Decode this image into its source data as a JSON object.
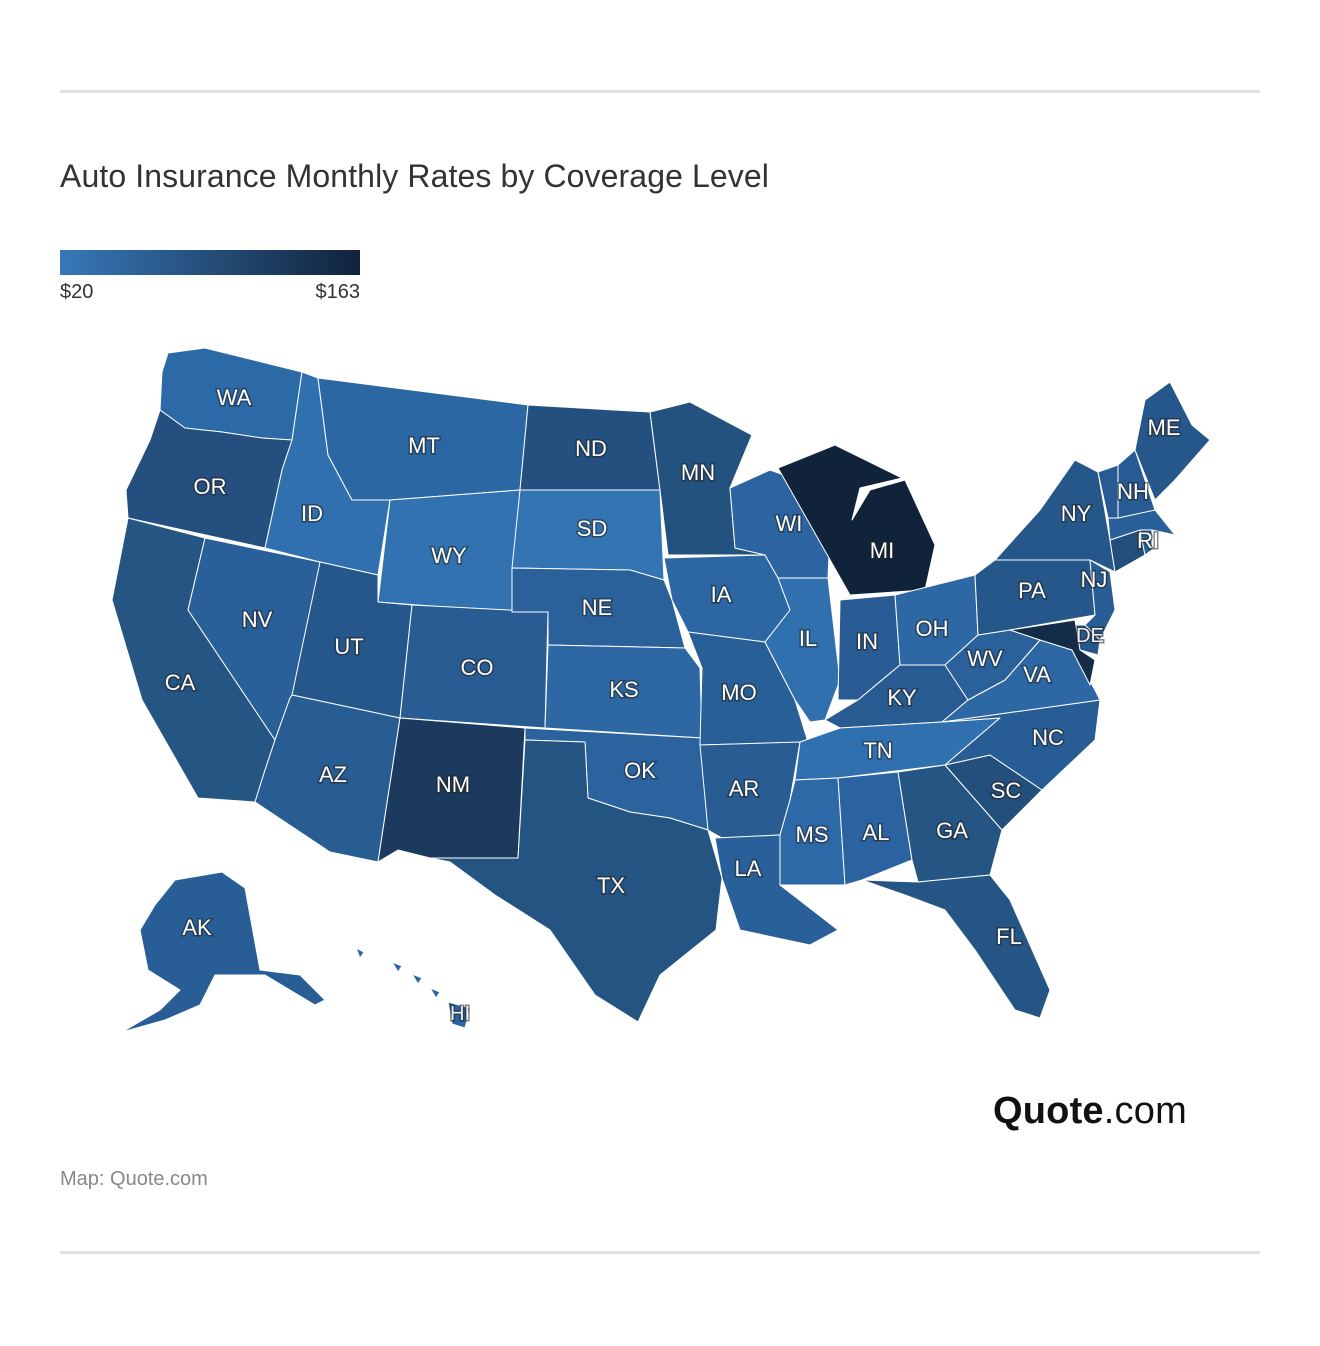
{
  "title": "Auto Insurance Monthly Rates by Coverage Level",
  "legend": {
    "min_label": "$20",
    "max_label": "$163",
    "min_color": "#3878b8",
    "max_color": "#10233a"
  },
  "credit": "Map: Quote.com",
  "brand": {
    "name_bold": "Quote",
    "name_suffix": ".com"
  },
  "states": [
    {
      "code": "WA",
      "label": "WA",
      "color": "#2b6aa6"
    },
    {
      "code": "OR",
      "label": "OR",
      "color": "#244f7e"
    },
    {
      "code": "CA",
      "label": "CA",
      "color": "#255583"
    },
    {
      "code": "NV",
      "label": "NV",
      "color": "#2a609a"
    },
    {
      "code": "ID",
      "label": "ID",
      "color": "#3070ae"
    },
    {
      "code": "MT",
      "label": "MT",
      "color": "#2b67a2"
    },
    {
      "code": "WY",
      "label": "WY",
      "color": "#3272b0"
    },
    {
      "code": "UT",
      "label": "UT",
      "color": "#26578a"
    },
    {
      "code": "AZ",
      "label": "AZ",
      "color": "#285d93"
    },
    {
      "code": "CO",
      "label": "CO",
      "color": "#285c93"
    },
    {
      "code": "NM",
      "label": "NM",
      "color": "#1b3a5e"
    },
    {
      "code": "ND",
      "label": "ND",
      "color": "#23507f"
    },
    {
      "code": "SD",
      "label": "SD",
      "color": "#3374b2"
    },
    {
      "code": "NE",
      "label": "NE",
      "color": "#2a619a"
    },
    {
      "code": "KS",
      "label": "KS",
      "color": "#2d68a4"
    },
    {
      "code": "OK",
      "label": "OK",
      "color": "#2a639e"
    },
    {
      "code": "TX",
      "label": "TX",
      "color": "#245582"
    },
    {
      "code": "MN",
      "label": "MN",
      "color": "#24527f"
    },
    {
      "code": "IA",
      "label": "IA",
      "color": "#2c67a4"
    },
    {
      "code": "MO",
      "label": "MO",
      "color": "#295f97"
    },
    {
      "code": "AR",
      "label": "AR",
      "color": "#285c93"
    },
    {
      "code": "LA",
      "label": "LA",
      "color": "#2a609a"
    },
    {
      "code": "WI",
      "label": "WI",
      "color": "#2b64a0"
    },
    {
      "code": "IL",
      "label": "IL",
      "color": "#3070ae"
    },
    {
      "code": "MI",
      "label": "MI",
      "color": "#10233a"
    },
    {
      "code": "IN",
      "label": "IN",
      "color": "#295c94"
    },
    {
      "code": "OH",
      "label": "OH",
      "color": "#2d68a5"
    },
    {
      "code": "KY",
      "label": "KY",
      "color": "#285b92"
    },
    {
      "code": "TN",
      "label": "TN",
      "color": "#3070ae"
    },
    {
      "code": "MS",
      "label": "MS",
      "color": "#2d69a6"
    },
    {
      "code": "AL",
      "label": "AL",
      "color": "#2b63a0"
    },
    {
      "code": "GA",
      "label": "GA",
      "color": "#255583"
    },
    {
      "code": "FL",
      "label": "FL",
      "color": "#245585"
    },
    {
      "code": "SC",
      "label": "SC",
      "color": "#234f7c"
    },
    {
      "code": "NC",
      "label": "NC",
      "color": "#285c94"
    },
    {
      "code": "VA",
      "label": "VA",
      "color": "#2d68a4"
    },
    {
      "code": "WV",
      "label": "WV",
      "color": "#2a619b"
    },
    {
      "code": "PA",
      "label": "PA",
      "color": "#26578a"
    },
    {
      "code": "NY",
      "label": "NY",
      "color": "#26578b"
    },
    {
      "code": "NJ",
      "label": "NJ",
      "color": "#285d95"
    },
    {
      "code": "DE",
      "label": "DE",
      "color": "#26578a"
    },
    {
      "code": "MD",
      "label": "",
      "color": "#142c48"
    },
    {
      "code": "CT",
      "label": "",
      "color": "#234e7c"
    },
    {
      "code": "RI",
      "label": "RI",
      "color": "#2a609a"
    },
    {
      "code": "MA",
      "label": "",
      "color": "#2a609a"
    },
    {
      "code": "VT",
      "label": "",
      "color": "#285b93"
    },
    {
      "code": "NH",
      "label": "NH",
      "color": "#285b93"
    },
    {
      "code": "ME",
      "label": "ME",
      "color": "#26578b"
    },
    {
      "code": "AK",
      "label": "AK",
      "color": "#285d95"
    },
    {
      "code": "HI",
      "label": "HI",
      "color": "#2b64a0"
    }
  ]
}
